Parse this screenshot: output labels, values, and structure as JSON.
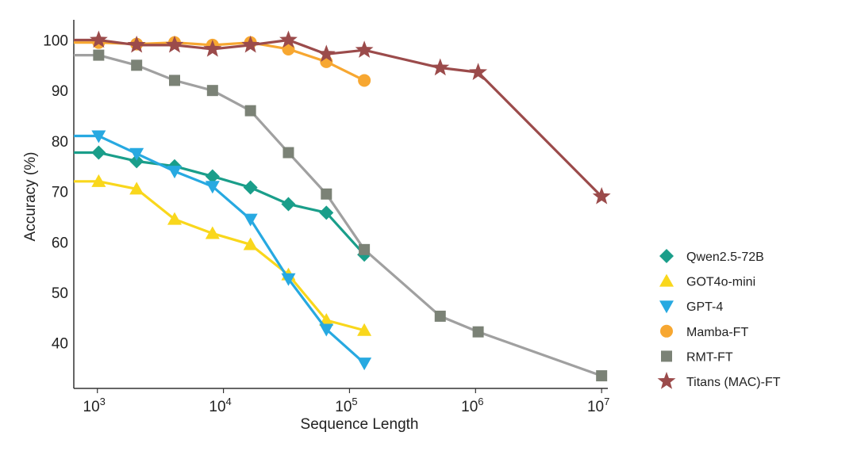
{
  "chart_data": {
    "type": "line",
    "xlabel": "Sequence Length",
    "ylabel": "Accuracy (%)",
    "x_scale": "log",
    "xlim": [
      650,
      11200000
    ],
    "ylim": [
      31,
      104
    ],
    "x_ticks": [
      {
        "base": "10",
        "exp": "3",
        "value": 1000
      },
      {
        "base": "10",
        "exp": "4",
        "value": 10000
      },
      {
        "base": "10",
        "exp": "5",
        "value": 100000
      },
      {
        "base": "10",
        "exp": "6",
        "value": 1000000
      },
      {
        "base": "10",
        "exp": "7",
        "value": 10000000
      }
    ],
    "y_ticks": [
      "40",
      "50",
      "60",
      "70",
      "80",
      "90",
      "100"
    ],
    "grid": false,
    "legend_position": "right",
    "series": [
      {
        "name": "Qwen2.5-72B",
        "color": "#1a9e8a",
        "marker": "diamond",
        "x": [
          1024,
          2048,
          4096,
          8192,
          16384,
          32768,
          65536,
          131072
        ],
        "y": [
          77.7,
          76,
          75,
          73,
          70.8,
          67.5,
          65.8,
          57.5
        ]
      },
      {
        "name": "GOT4o-mini",
        "color": "#f9d71c",
        "marker": "triangle-up",
        "x": [
          1024,
          2048,
          4096,
          8192,
          16384,
          32768,
          65536,
          131072
        ],
        "y": [
          72,
          70.5,
          64.5,
          61.7,
          59.5,
          53.5,
          44.5,
          42.5
        ]
      },
      {
        "name": "GPT-4",
        "color": "#27a9e1",
        "marker": "triangle-down",
        "x": [
          1024,
          2048,
          4096,
          8192,
          16384,
          32768,
          65536,
          131072
        ],
        "y": [
          81,
          77.5,
          74,
          71,
          64.5,
          52.7,
          42.7,
          36
        ]
      },
      {
        "name": "Mamba-FT",
        "color": "#f7a731",
        "marker": "circle",
        "x": [
          1024,
          2048,
          4096,
          8192,
          16384,
          32768,
          65536,
          131072
        ],
        "y": [
          99.5,
          99.2,
          99.5,
          99,
          99.5,
          98.2,
          95.7,
          92
        ]
      },
      {
        "name": "RMT-FT",
        "color": "#7b8276",
        "line_color": "#a0a0a0",
        "marker": "square",
        "x": [
          1024,
          2048,
          4096,
          8192,
          16384,
          32768,
          65536,
          131072,
          524288,
          1048576,
          10000000
        ],
        "y": [
          97,
          95,
          92,
          90,
          86,
          77.7,
          69.5,
          58.5,
          45.3,
          42.2,
          33.5
        ]
      },
      {
        "name": "Titans (MAC)-FT",
        "color": "#9b4b4b",
        "marker": "star",
        "x": [
          1024,
          2048,
          4096,
          8192,
          16384,
          32768,
          65536,
          131072,
          524288,
          1048576,
          10000000
        ],
        "y": [
          100,
          99,
          99,
          98.2,
          99,
          100,
          97.2,
          98,
          94.5,
          93.6,
          69
        ]
      }
    ]
  }
}
